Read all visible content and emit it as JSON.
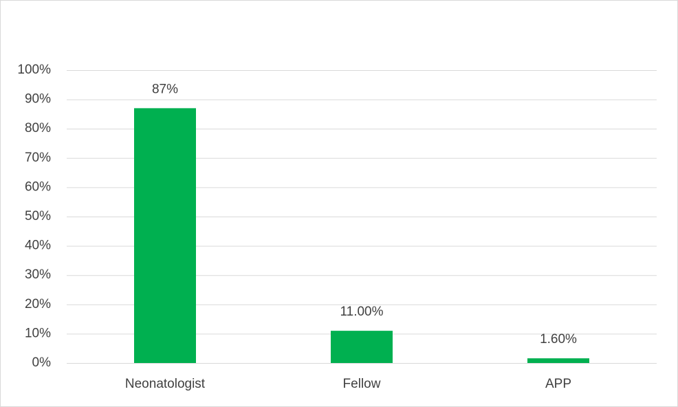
{
  "chart_data": {
    "type": "bar",
    "categories": [
      "Neonatologist",
      "Fellow",
      "APP"
    ],
    "values": [
      87,
      11,
      1.6
    ],
    "value_labels": [
      "87%",
      "11.00%",
      "1.60%"
    ],
    "color": "#00b050",
    "ylim": [
      0,
      100
    ],
    "yticks": [
      {
        "value": 0,
        "label": "0%"
      },
      {
        "value": 10,
        "label": "10%"
      },
      {
        "value": 20,
        "label": "20%"
      },
      {
        "value": 30,
        "label": "30%"
      },
      {
        "value": 40,
        "label": "40%"
      },
      {
        "value": 50,
        "label": "50%"
      },
      {
        "value": 60,
        "label": "60%"
      },
      {
        "value": 70,
        "label": "70%"
      },
      {
        "value": 80,
        "label": "80%"
      },
      {
        "value": 90,
        "label": "90%"
      },
      {
        "value": 100,
        "label": "100%"
      }
    ],
    "grid": true
  }
}
